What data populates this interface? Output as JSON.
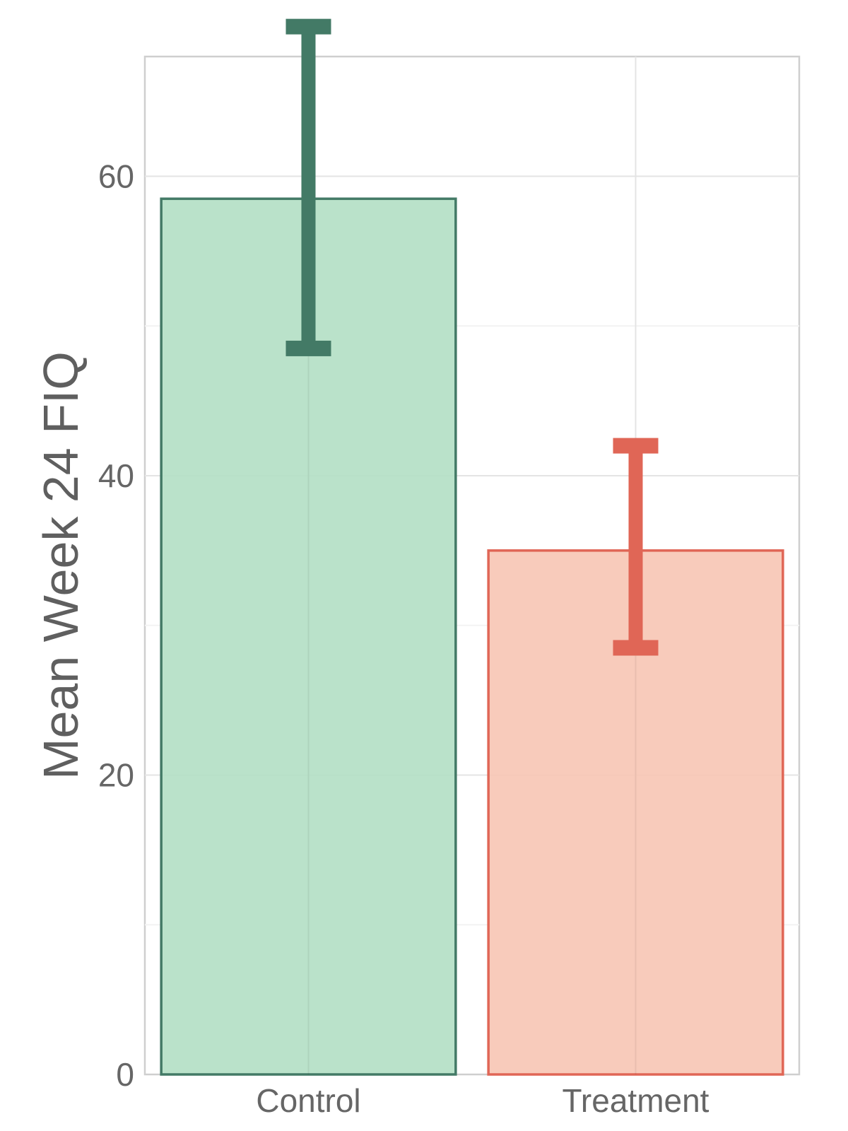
{
  "chart_data": {
    "type": "bar",
    "title": "",
    "xlabel": "",
    "ylabel": "Mean Week 24 FIQ",
    "categories": [
      "Control",
      "Treatment"
    ],
    "values": [
      58.5,
      35.0
    ],
    "error_low": [
      48.5,
      28.5
    ],
    "error_high": [
      70.0,
      42.0
    ],
    "ylim": [
      0,
      68
    ],
    "yticks": [
      0,
      20,
      40,
      60
    ],
    "ytick_labels": [
      "0",
      "20",
      "40",
      "60"
    ],
    "grid": true,
    "legend": "none",
    "colors": {
      "Control": {
        "fill": "#b5e0c6",
        "stroke": "#437a66"
      },
      "Treatment": {
        "fill": "#f7c7b6",
        "stroke": "#e06656"
      }
    }
  }
}
